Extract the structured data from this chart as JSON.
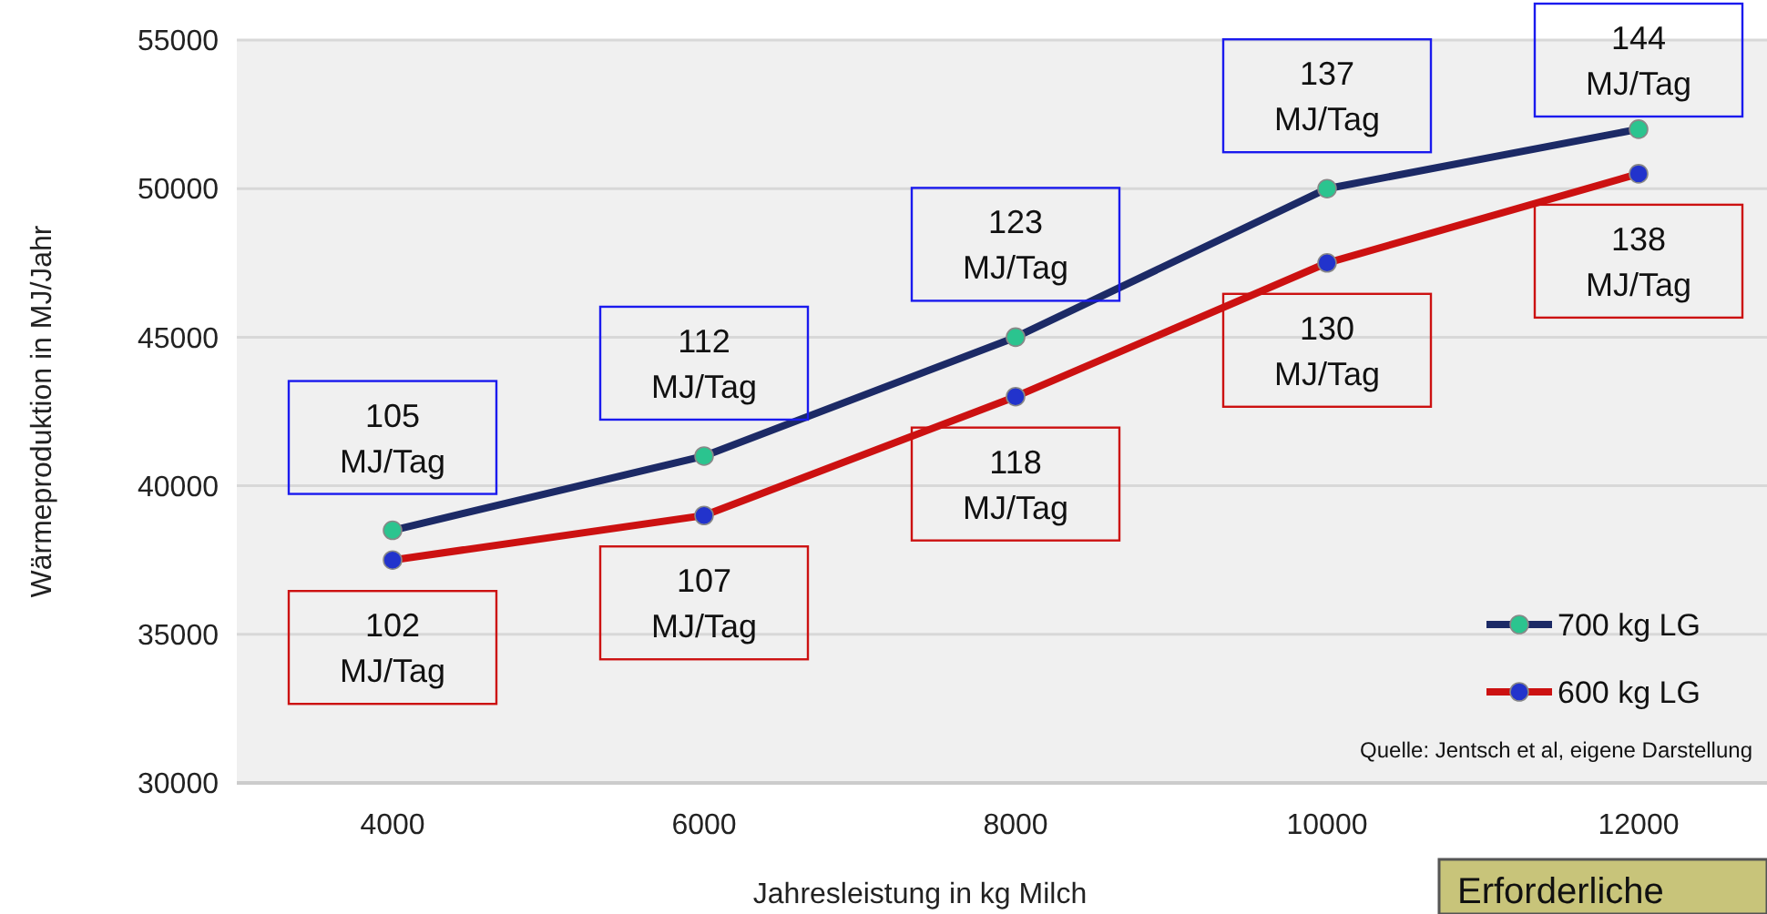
{
  "chart_data": {
    "type": "line",
    "xlabel": "Jahresleistung in kg Milch",
    "ylabel": "Wärmeproduktion in MJ/Jahr",
    "categories": [
      "4000",
      "6000",
      "8000",
      "10000",
      "12000"
    ],
    "series": [
      {
        "name": "700 kg LG",
        "color": "#1c2a66",
        "values": [
          38500,
          41000,
          45000,
          50000,
          52000
        ]
      },
      {
        "name": "600 kg LG",
        "color": "#cc1111",
        "values": [
          37500,
          39000,
          43000,
          47500,
          50500
        ]
      }
    ],
    "ylim": [
      30000,
      55000
    ],
    "yticks": [
      30000,
      35000,
      40000,
      45000,
      50000,
      55000
    ],
    "grid": "y",
    "legend": "bottom right",
    "marker": "circle",
    "line_style": "solid",
    "annotations": [
      {
        "text": "105 MJ/Tag",
        "x": "4000",
        "y": 38500
      },
      {
        "text": "112 MJ/Tag",
        "x": "6000",
        "y": 41000
      },
      {
        "text": "123 MJ/Tag",
        "x": "8000",
        "y": 45000
      },
      {
        "text": "137 MJ/Tag",
        "x": "10000",
        "y": 50000
      },
      {
        "text": "144 MJ/Tag",
        "x": "12000",
        "y": 52000
      },
      {
        "text": "102 MJ/Tag",
        "x": "4000",
        "y": 37500
      },
      {
        "text": "107 MJ/Tag",
        "x": "6000",
        "y": 39000
      },
      {
        "text": "118 MJ/Tag",
        "x": "8000",
        "y": 43000
      },
      {
        "text": "130 MJ/Tag",
        "x": "10000",
        "y": 47500
      },
      {
        "text": "138 MJ/Tag",
        "x": "12000",
        "y": 50500
      },
      "Quelle: Jentsch et al, eigene Darstellung",
      "Erforderliche"
    ]
  }
}
